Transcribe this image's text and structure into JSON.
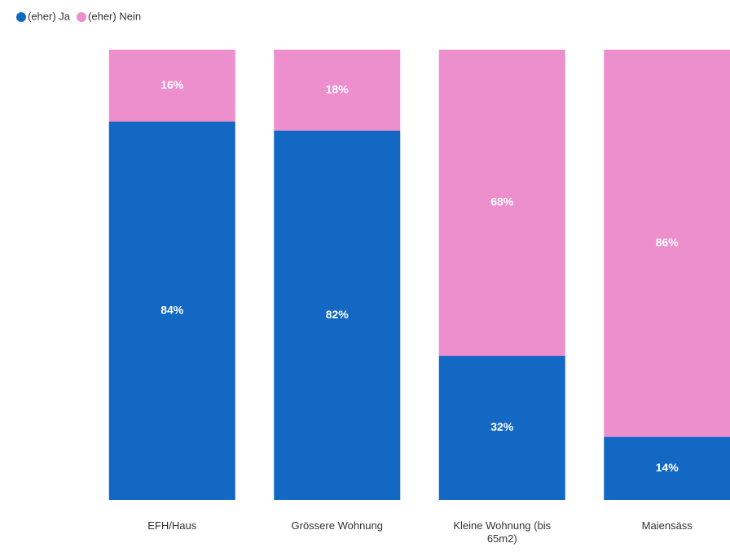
{
  "chart_data": {
    "type": "stacked_bar",
    "categories": [
      "EFH/Haus",
      "Grössere Wohnung",
      "Kleine Wohnung (bis 65m2)",
      "Maiensäss"
    ],
    "series": [
      {
        "name": "(eher) Ja",
        "color": "#1268c3",
        "values": [
          84,
          82,
          32,
          14
        ],
        "value_labels": [
          "84%",
          "82%",
          "32%",
          "14%"
        ]
      },
      {
        "name": "(eher) Nein",
        "color": "#ed8fcd",
        "values": [
          16,
          18,
          68,
          86
        ],
        "value_labels": [
          "16%",
          "18%",
          "68%",
          "86%"
        ]
      }
    ],
    "ylim": [
      0,
      100
    ],
    "legend": "top-left"
  }
}
